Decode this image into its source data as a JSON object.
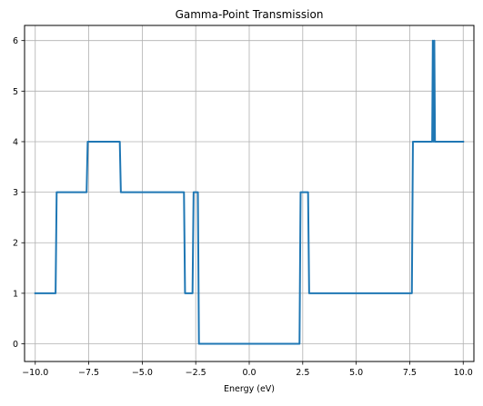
{
  "chart_data": {
    "type": "line",
    "title": "Gamma-Point Transmission",
    "xlabel": "Energy (eV)",
    "ylabel": "",
    "xlim": [
      -10.5,
      10.5
    ],
    "ylim": [
      -0.35,
      6.3
    ],
    "grid": true,
    "xticks": [
      -10.0,
      -7.5,
      -5.0,
      -2.5,
      0.0,
      2.5,
      5.0,
      7.5,
      10.0
    ],
    "xtick_labels": [
      "−10.0",
      "−7.5",
      "−5.0",
      "−2.5",
      "0.0",
      "2.5",
      "5.0",
      "7.5",
      "10.0"
    ],
    "yticks": [
      0,
      1,
      2,
      3,
      4,
      5,
      6
    ],
    "ytick_labels": [
      "0",
      "1",
      "2",
      "3",
      "4",
      "5",
      "6"
    ],
    "series": [
      {
        "color": "#1f77b4",
        "x": [
          -10.0,
          -9.05,
          -9.0,
          -7.6,
          -7.55,
          -6.05,
          -6.0,
          -3.05,
          -3.0,
          -2.65,
          -2.6,
          -2.4,
          -2.35,
          -2.2,
          2.35,
          2.4,
          2.75,
          2.8,
          7.6,
          7.65,
          8.55,
          8.58,
          8.62,
          8.65,
          8.68,
          8.72,
          8.75,
          10.0
        ],
        "y": [
          1,
          1,
          3,
          3,
          4,
          4,
          3,
          3,
          1,
          1,
          3,
          3,
          0,
          0,
          0,
          3,
          3,
          1,
          1,
          4,
          4,
          6,
          4,
          6,
          4,
          4,
          4,
          4
        ]
      }
    ]
  }
}
